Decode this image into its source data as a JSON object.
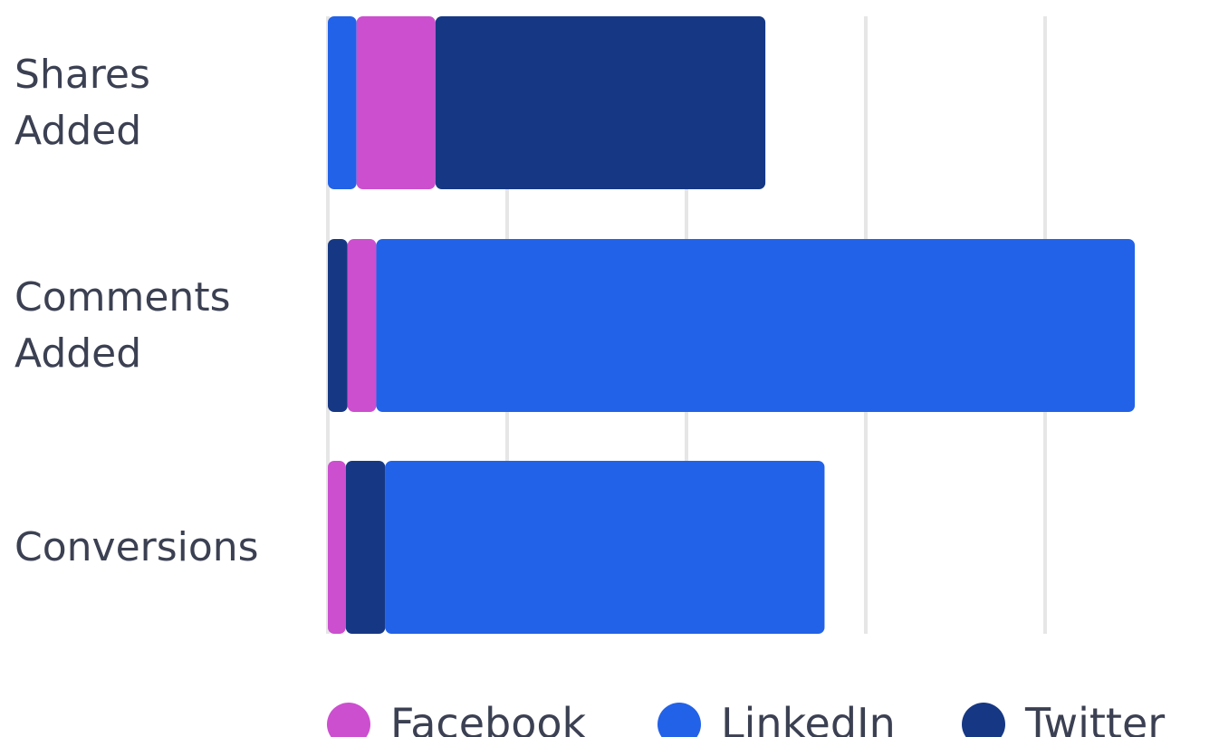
{
  "chart_data": {
    "type": "stacked-bar",
    "categories": [
      "Shares Added",
      "Comments Added",
      "Conversions"
    ],
    "series": [
      {
        "name": "Facebook",
        "color": "#cc4fcf",
        "values": [
          0.44,
          0.16,
          0.1
        ]
      },
      {
        "name": "LinkedIn",
        "color": "#2262e8",
        "values": [
          0.16,
          4.23,
          2.45
        ]
      },
      {
        "name": "Twitter",
        "color": "#163884",
        "values": [
          1.84,
          0.11,
          0.22
        ]
      }
    ],
    "xlim": [
      0,
      4.5
    ],
    "xticks": [
      0,
      1,
      2,
      3,
      4
    ],
    "grid": true
  }
}
